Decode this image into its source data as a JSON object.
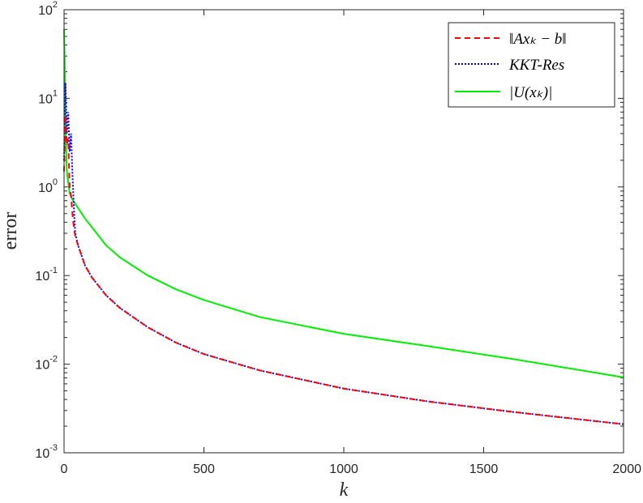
{
  "chart_data": {
    "type": "line",
    "title": "",
    "xlabel": "k",
    "ylabel": "error",
    "xlim": [
      0,
      2000
    ],
    "ylim": [
      0.001,
      100
    ],
    "yscale": "log",
    "grid": false,
    "legend_position": "top-right",
    "x_ticks": [
      "0",
      "500",
      "1000",
      "1500",
      "2000"
    ],
    "y_ticks": [
      {
        "base": "10",
        "exp": "-3"
      },
      {
        "base": "10",
        "exp": "-2"
      },
      {
        "base": "10",
        "exp": "-1"
      },
      {
        "base": "10",
        "exp": "0"
      },
      {
        "base": "10",
        "exp": "1"
      },
      {
        "base": "10",
        "exp": "2"
      }
    ],
    "series": [
      {
        "name": "‖Ax_k − b‖",
        "legend_text": "‖Axₖ − b‖",
        "color": "#ff0000",
        "style": "dashed",
        "points": [
          [
            0,
            1.5
          ],
          [
            5,
            6.5
          ],
          [
            10,
            3.0
          ],
          [
            15,
            3.5
          ],
          [
            20,
            1.0
          ],
          [
            25,
            0.8
          ],
          [
            30,
            0.5
          ],
          [
            35,
            0.35
          ],
          [
            40,
            0.28
          ],
          [
            50,
            0.22
          ],
          [
            75,
            0.13
          ],
          [
            100,
            0.095
          ],
          [
            150,
            0.06
          ],
          [
            200,
            0.043
          ],
          [
            300,
            0.026
          ],
          [
            400,
            0.0175
          ],
          [
            500,
            0.013
          ],
          [
            700,
            0.0085
          ],
          [
            1000,
            0.0053
          ],
          [
            1300,
            0.0038
          ],
          [
            1600,
            0.0029
          ],
          [
            2000,
            0.0021
          ]
        ]
      },
      {
        "name": "KKT-Res",
        "legend_text": "KKT-Res",
        "color": "#0000ff",
        "style": "dotted",
        "points": [
          [
            0,
            2.0
          ],
          [
            5,
            15.0
          ],
          [
            10,
            4.0
          ],
          [
            15,
            7.0
          ],
          [
            20,
            2.5
          ],
          [
            25,
            4.0
          ],
          [
            30,
            1.4
          ],
          [
            35,
            0.6
          ],
          [
            40,
            0.3
          ],
          [
            50,
            0.22
          ],
          [
            75,
            0.13
          ],
          [
            100,
            0.095
          ],
          [
            150,
            0.06
          ],
          [
            200,
            0.043
          ],
          [
            300,
            0.026
          ],
          [
            400,
            0.0175
          ],
          [
            500,
            0.013
          ],
          [
            700,
            0.0085
          ],
          [
            1000,
            0.0053
          ],
          [
            1300,
            0.0038
          ],
          [
            1600,
            0.0029
          ],
          [
            2000,
            0.0021
          ]
        ]
      },
      {
        "name": "|U(x_k)|",
        "legend_text": "|U(xₖ)|",
        "color": "#00ee00",
        "style": "solid",
        "points": [
          [
            0,
            60
          ],
          [
            2,
            30
          ],
          [
            5,
            5
          ],
          [
            10,
            1.5
          ],
          [
            20,
            0.85
          ],
          [
            30,
            0.72
          ],
          [
            50,
            0.58
          ],
          [
            75,
            0.44
          ],
          [
            100,
            0.35
          ],
          [
            150,
            0.22
          ],
          [
            200,
            0.16
          ],
          [
            300,
            0.1
          ],
          [
            400,
            0.07
          ],
          [
            500,
            0.053
          ],
          [
            700,
            0.034
          ],
          [
            1000,
            0.022
          ],
          [
            1300,
            0.016
          ],
          [
            1600,
            0.0115
          ],
          [
            2000,
            0.0071
          ]
        ]
      }
    ]
  }
}
